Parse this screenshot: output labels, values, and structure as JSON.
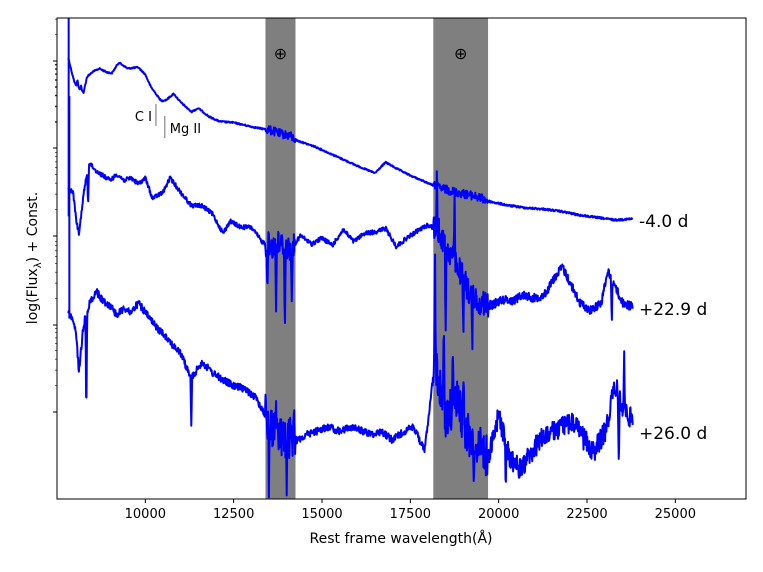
{
  "chart_data": {
    "type": "line",
    "xlabel": "Rest frame wavelength(Å)",
    "ylabel": "log(Flux",
    "ylabel_sub": "λ",
    "ylabel_suffix": ") + Const.",
    "xlim": [
      7500,
      27000
    ],
    "xticks": [
      10000,
      12500,
      15000,
      17500,
      20000,
      22500,
      25000
    ],
    "xtick_labels": [
      "10000",
      "12500",
      "15000",
      "17500",
      "20000",
      "22500",
      "25000"
    ],
    "telluric_bands": [
      {
        "x0": 13400,
        "x1": 14250,
        "symbol": "⊕"
      },
      {
        "x0": 18150,
        "x1": 19700,
        "symbol": "⊕"
      }
    ],
    "line_ids": [
      {
        "label": "C I",
        "x": 10300
      },
      {
        "label": "Mg II",
        "x": 10550
      }
    ],
    "series_color": "#0000ff",
    "band_color": "#7f7f7f",
    "series": [
      {
        "name": "-4.0 d",
        "noise": 0.006,
        "points": [
          [
            7820,
            2.58
          ],
          [
            7900,
            2.68
          ],
          [
            8000,
            2.79
          ],
          [
            8120,
            2.83
          ],
          [
            8250,
            2.87
          ],
          [
            8350,
            2.74
          ],
          [
            8500,
            2.7
          ],
          [
            8700,
            2.67
          ],
          [
            8900,
            2.7
          ],
          [
            9050,
            2.71
          ],
          [
            9250,
            2.62
          ],
          [
            9500,
            2.67
          ],
          [
            9800,
            2.66
          ],
          [
            10000,
            2.72
          ],
          [
            10150,
            2.82
          ],
          [
            10300,
            2.88
          ],
          [
            10450,
            2.94
          ],
          [
            10600,
            2.93
          ],
          [
            10800,
            2.88
          ],
          [
            11000,
            2.95
          ],
          [
            11300,
            3.03
          ],
          [
            11500,
            3.0
          ],
          [
            11800,
            3.07
          ],
          [
            12100,
            3.11
          ],
          [
            12500,
            3.12
          ],
          [
            12800,
            3.14
          ],
          [
            13100,
            3.16
          ],
          [
            13500,
            3.18
          ],
          [
            13800,
            3.21
          ],
          [
            14100,
            3.23
          ],
          [
            14300,
            3.27
          ],
          [
            14800,
            3.32
          ],
          [
            15400,
            3.4
          ],
          [
            16000,
            3.48
          ],
          [
            16500,
            3.54
          ],
          [
            16800,
            3.45
          ],
          [
            17100,
            3.5
          ],
          [
            17500,
            3.56
          ],
          [
            17900,
            3.61
          ],
          [
            18300,
            3.66
          ],
          [
            18800,
            3.7
          ],
          [
            19300,
            3.73
          ],
          [
            19800,
            3.78
          ],
          [
            20300,
            3.81
          ],
          [
            20800,
            3.83
          ],
          [
            21300,
            3.84
          ],
          [
            21800,
            3.86
          ],
          [
            22300,
            3.89
          ],
          [
            22800,
            3.91
          ],
          [
            23300,
            3.93
          ],
          [
            23800,
            3.92
          ]
        ]
      },
      {
        "name": "+22.9 d",
        "noise": 0.018,
        "points": [
          [
            7820,
            3.68
          ],
          [
            7950,
            3.69
          ],
          [
            8050,
            3.94
          ],
          [
            8120,
            4.05
          ],
          [
            8250,
            3.72
          ],
          [
            8400,
            3.45
          ],
          [
            8600,
            3.52
          ],
          [
            8800,
            3.56
          ],
          [
            9000,
            3.6
          ],
          [
            9200,
            3.55
          ],
          [
            9400,
            3.6
          ],
          [
            9600,
            3.58
          ],
          [
            9800,
            3.63
          ],
          [
            10000,
            3.58
          ],
          [
            10200,
            3.75
          ],
          [
            10500,
            3.7
          ],
          [
            10700,
            3.58
          ],
          [
            11000,
            3.7
          ],
          [
            11300,
            3.81
          ],
          [
            11600,
            3.81
          ],
          [
            11900,
            3.88
          ],
          [
            12200,
            4.04
          ],
          [
            12400,
            3.94
          ],
          [
            12700,
            3.99
          ],
          [
            13000,
            3.99
          ],
          [
            13300,
            4.11
          ],
          [
            13600,
            4.15
          ],
          [
            13800,
            4.12
          ],
          [
            14100,
            4.18
          ],
          [
            14400,
            4.06
          ],
          [
            14700,
            4.13
          ],
          [
            15000,
            4.08
          ],
          [
            15300,
            4.14
          ],
          [
            15600,
            4.01
          ],
          [
            15900,
            4.11
          ],
          [
            16200,
            4.04
          ],
          [
            16500,
            4.03
          ],
          [
            16800,
            4.0
          ],
          [
            17100,
            4.15
          ],
          [
            17400,
            4.08
          ],
          [
            17700,
            4.02
          ],
          [
            18000,
            3.97
          ],
          [
            18300,
            4.02
          ],
          [
            18600,
            4.2
          ],
          [
            18900,
            4.35
          ],
          [
            19200,
            4.55
          ],
          [
            19500,
            4.62
          ],
          [
            19800,
            4.64
          ],
          [
            20100,
            4.59
          ],
          [
            20400,
            4.6
          ],
          [
            20700,
            4.55
          ],
          [
            21000,
            4.58
          ],
          [
            21300,
            4.55
          ],
          [
            21600,
            4.4
          ],
          [
            21800,
            4.32
          ],
          [
            22000,
            4.44
          ],
          [
            22300,
            4.62
          ],
          [
            22600,
            4.68
          ],
          [
            22900,
            4.62
          ],
          [
            23100,
            4.35
          ],
          [
            23300,
            4.48
          ],
          [
            23500,
            4.62
          ],
          [
            23800,
            4.65
          ]
        ]
      },
      {
        "name": "+26.0 d",
        "noise": 0.03,
        "points": [
          [
            7820,
            4.7
          ],
          [
            7950,
            4.76
          ],
          [
            8050,
            4.9
          ],
          [
            8120,
            5.2
          ],
          [
            8250,
            4.8
          ],
          [
            8400,
            4.64
          ],
          [
            8600,
            4.52
          ],
          [
            8800,
            4.6
          ],
          [
            9000,
            4.64
          ],
          [
            9200,
            4.72
          ],
          [
            9400,
            4.66
          ],
          [
            9600,
            4.7
          ],
          [
            9800,
            4.62
          ],
          [
            10000,
            4.7
          ],
          [
            10300,
            4.82
          ],
          [
            10600,
            4.9
          ],
          [
            10800,
            4.98
          ],
          [
            11000,
            5.04
          ],
          [
            11300,
            5.25
          ],
          [
            11600,
            5.11
          ],
          [
            11900,
            5.2
          ],
          [
            12200,
            5.26
          ],
          [
            12500,
            5.31
          ],
          [
            12800,
            5.33
          ],
          [
            13100,
            5.4
          ],
          [
            13400,
            5.55
          ],
          [
            13700,
            5.7
          ],
          [
            14000,
            5.75
          ],
          [
            14300,
            5.76
          ],
          [
            14600,
            5.71
          ],
          [
            14900,
            5.68
          ],
          [
            15200,
            5.65
          ],
          [
            15500,
            5.69
          ],
          [
            15800,
            5.65
          ],
          [
            16100,
            5.68
          ],
          [
            16400,
            5.71
          ],
          [
            16700,
            5.69
          ],
          [
            17000,
            5.76
          ],
          [
            17300,
            5.69
          ],
          [
            17600,
            5.65
          ],
          [
            17900,
            5.85
          ],
          [
            18200,
            5.1
          ],
          [
            18500,
            5.6
          ],
          [
            18800,
            5.4
          ],
          [
            19100,
            5.7
          ],
          [
            19400,
            5.8
          ],
          [
            19700,
            5.9
          ],
          [
            20000,
            5.55
          ],
          [
            20300,
            5.9
          ],
          [
            20600,
            6.0
          ],
          [
            20900,
            5.88
          ],
          [
            21200,
            5.75
          ],
          [
            21500,
            5.7
          ],
          [
            21800,
            5.65
          ],
          [
            22100,
            5.6
          ],
          [
            22400,
            5.75
          ],
          [
            22700,
            5.85
          ],
          [
            23000,
            5.7
          ],
          [
            23300,
            5.3
          ],
          [
            23500,
            5.5
          ],
          [
            23800,
            5.6
          ]
        ]
      }
    ],
    "spikes": [
      {
        "series": 0,
        "x": 8080,
        "dy": -0.06
      },
      {
        "series": 0,
        "x": 8180,
        "dy": -0.04
      },
      {
        "series": 1,
        "x": 8380,
        "dy": 0.35
      },
      {
        "series": 1,
        "x": 13450,
        "dy": 0.4
      },
      {
        "series": 1,
        "x": 13700,
        "dy": 0.55
      },
      {
        "series": 1,
        "x": 13950,
        "dy": 0.7
      },
      {
        "series": 1,
        "x": 14150,
        "dy": 0.5
      },
      {
        "series": 1,
        "x": 18250,
        "dy": -0.45
      },
      {
        "series": 1,
        "x": 18500,
        "dy": 0.7
      },
      {
        "series": 1,
        "x": 18750,
        "dy": -0.55
      },
      {
        "series": 1,
        "x": 19000,
        "dy": 0.6
      },
      {
        "series": 1,
        "x": 19250,
        "dy": 0.45
      },
      {
        "series": 1,
        "x": 23200,
        "dy": 0.4
      },
      {
        "series": 2,
        "x": 8330,
        "dy": 0.9
      },
      {
        "series": 2,
        "x": 11300,
        "dy": 0.4
      },
      {
        "series": 2,
        "x": 13500,
        "dy": 0.6
      },
      {
        "series": 2,
        "x": 13700,
        "dy": -0.3
      },
      {
        "series": 2,
        "x": 14000,
        "dy": 0.55
      },
      {
        "series": 2,
        "x": 14200,
        "dy": -0.25
      },
      {
        "series": 2,
        "x": 18200,
        "dy": -0.9
      },
      {
        "series": 2,
        "x": 18450,
        "dy": -0.7
      },
      {
        "series": 2,
        "x": 18700,
        "dy": -0.55
      },
      {
        "series": 2,
        "x": 19000,
        "dy": -0.4
      },
      {
        "series": 2,
        "x": 19300,
        "dy": 0.3
      },
      {
        "series": 2,
        "x": 20200,
        "dy": 0.45
      },
      {
        "series": 2,
        "x": 23400,
        "dy": 0.6
      },
      {
        "series": 2,
        "x": 23550,
        "dy": -0.5
      }
    ]
  }
}
